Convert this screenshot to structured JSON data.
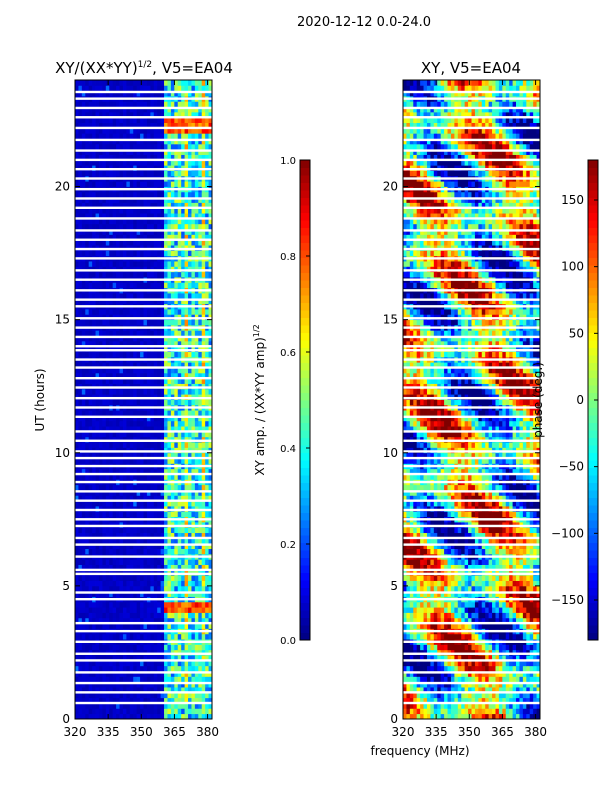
{
  "suptitle": "2020-12-12 0.0-24.0",
  "xlabel_shared": "frequency (MHz)",
  "colors": {
    "jet": [
      "#00007f",
      "#0000ff",
      "#007fff",
      "#00ffff",
      "#7fff7f",
      "#ffff00",
      "#ff7f00",
      "#ff0000",
      "#7f0000"
    ]
  },
  "chart_data": [
    {
      "type": "heatmap",
      "title_main": "XY/(XX*YY)",
      "title_sup": "1/2",
      "title_tail": ", V5=EA04",
      "ylabel": "UT (hours)",
      "xlim": [
        320,
        382
      ],
      "ylim": [
        0,
        24
      ],
      "xticks": [
        320,
        335,
        350,
        365,
        380
      ],
      "yticks": [
        0,
        5,
        10,
        15,
        20
      ],
      "colorbar": {
        "label": "XY amp. / (XX*YY amp)",
        "label_sup": "1/2",
        "range": [
          0.0,
          1.0
        ],
        "ticks": [
          "0.0",
          "0.2",
          "0.4",
          "0.6",
          "0.8",
          "1.0"
        ]
      },
      "description_values": {
        "low_band_level": 0.05,
        "high_band_start_mhz": 361,
        "high_band_level_range": [
          0.2,
          0.6
        ],
        "bright_blobs_hours": [
          22.3,
          4.2
        ],
        "bright_blob_value": 0.9
      }
    },
    {
      "type": "heatmap",
      "title": "XY, V5=EA04",
      "xlim": [
        320,
        382
      ],
      "ylim": [
        0,
        24
      ],
      "xticks": [
        320,
        335,
        350,
        365,
        380
      ],
      "yticks": [
        0,
        5,
        10,
        15,
        20
      ],
      "colorbar": {
        "label": "phase (deg.)",
        "range": [
          -180,
          180
        ],
        "ticks": [
          "−150",
          "−100",
          "−50",
          "0",
          "50",
          "100",
          "150"
        ]
      }
    }
  ],
  "flagged_hours": [
    0.6,
    1.0,
    1.35,
    1.75,
    2.2,
    2.45,
    2.9,
    3.3,
    3.6,
    4.5,
    4.75,
    5.45,
    5.6,
    6.1,
    6.55,
    6.8,
    7.25,
    7.5,
    7.85,
    8.2,
    8.55,
    8.9,
    9.2,
    9.5,
    9.8,
    10.05,
    10.45,
    10.8,
    11.35,
    11.7,
    12.05,
    12.45,
    12.8,
    13.2,
    13.5,
    13.85,
    14.0,
    14.35,
    14.7,
    15.05,
    15.5,
    15.75,
    16.1,
    16.5,
    16.85,
    17.3,
    17.65,
    18.0,
    18.35,
    18.8,
    19.2,
    19.55,
    19.9,
    20.3,
    20.65,
    21.0,
    21.35,
    21.75,
    22.2,
    22.6,
    22.95,
    23.3,
    23.55
  ]
}
